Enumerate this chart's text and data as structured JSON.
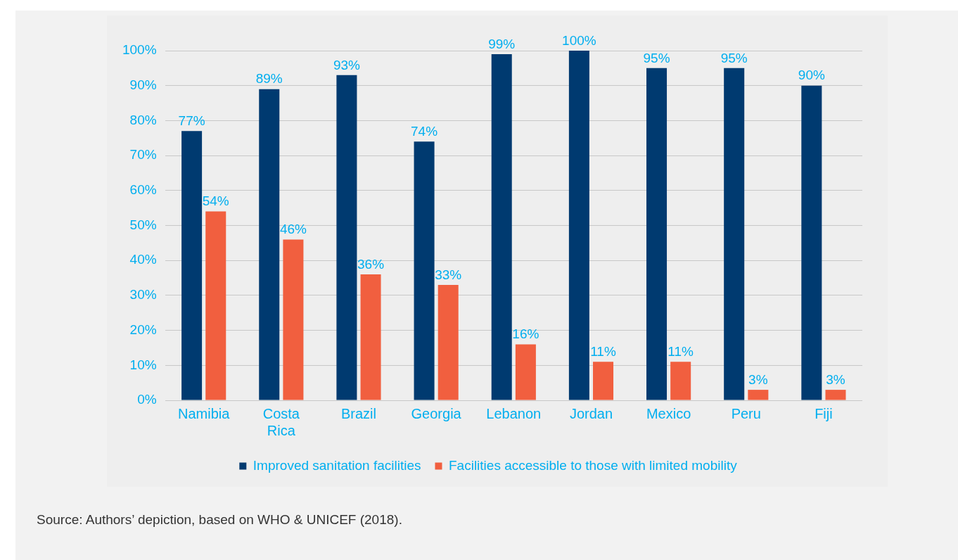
{
  "chart_data": {
    "type": "bar",
    "categories": [
      "Namibia",
      "Costa Rica",
      "Brazil",
      "Georgia",
      "Lebanon",
      "Jordan",
      "Mexico",
      "Peru",
      "Fiji"
    ],
    "series": [
      {
        "name": "Improved sanitation facilities",
        "color": "#003a70",
        "values": [
          77,
          89,
          93,
          74,
          99,
          100,
          95,
          95,
          90
        ],
        "value_labels": [
          "77%",
          "89%",
          "93%",
          "74%",
          "99%",
          "100%",
          "95%",
          "95%",
          "90%"
        ]
      },
      {
        "name": "Facilities accessible to those with limited mobility",
        "color": "#f15f3f",
        "values": [
          54,
          46,
          36,
          33,
          16,
          11,
          11,
          3,
          3
        ],
        "value_labels": [
          "54%",
          "46%",
          "36%",
          "33%",
          "16%",
          "11%",
          "11%",
          "3%",
          "3%"
        ]
      }
    ],
    "ylim": [
      0,
      100
    ],
    "yticks": [
      {
        "value": 0,
        "label": "0%"
      },
      {
        "value": 10,
        "label": "10%"
      },
      {
        "value": 20,
        "label": "20%"
      },
      {
        "value": 30,
        "label": "30%"
      },
      {
        "value": 40,
        "label": "40%"
      },
      {
        "value": 50,
        "label": "50%"
      },
      {
        "value": 60,
        "label": "60%"
      },
      {
        "value": 70,
        "label": "70%"
      },
      {
        "value": 80,
        "label": "80%"
      },
      {
        "value": 90,
        "label": "90%"
      },
      {
        "value": 100,
        "label": "100%"
      }
    ],
    "grid": "y",
    "legend": "bottom",
    "annotations": [
      "Source: Authors’ depiction, based on WHO & UNICEF (2018)."
    ]
  }
}
